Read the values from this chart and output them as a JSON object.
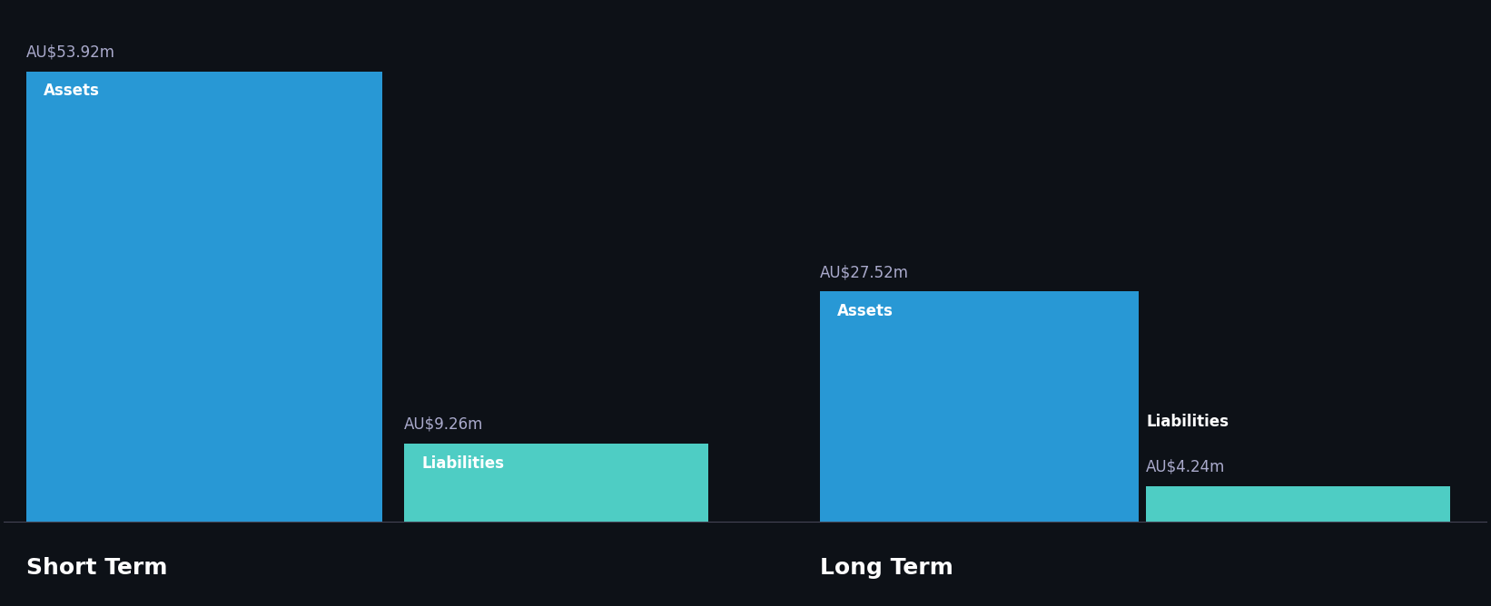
{
  "background_color": "#0d1117",
  "short_term": {
    "assets_value": 53.92,
    "liabilities_value": 9.26,
    "assets_label": "Assets",
    "liabilities_label": "Liabilities",
    "assets_color": "#2898d5",
    "liabilities_color": "#4ecdc4",
    "group_label": "Short Term"
  },
  "long_term": {
    "assets_value": 27.52,
    "liabilities_value": 4.24,
    "assets_label": "Assets",
    "liabilities_label": "Liabilities",
    "assets_color": "#2898d5",
    "liabilities_color": "#4ecdc4",
    "group_label": "Long Term"
  },
  "max_value": 53.92,
  "value_label_color": "#aaaacc",
  "bar_label_color": "#ffffff",
  "group_label_color": "#ffffff",
  "value_label_fontsize": 12,
  "bar_label_fontsize": 12,
  "group_label_fontsize": 18
}
